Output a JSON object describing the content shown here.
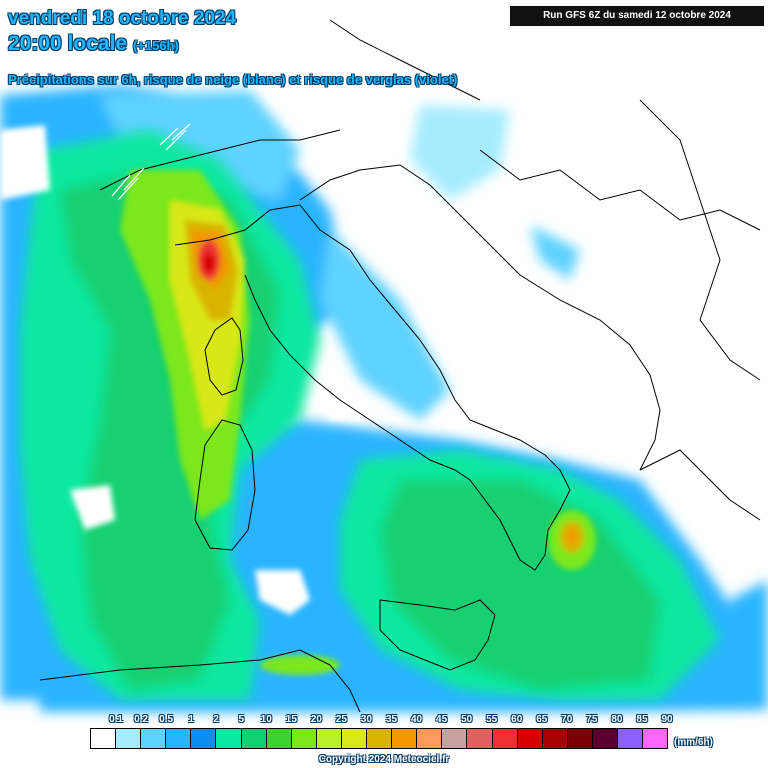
{
  "header": {
    "date_line": "vendredi 18 octobre 2024",
    "time_line": "20:00 locale",
    "lead_time": "(+156h)",
    "subtitle": "Précipitations sur 6h, risque de neige (blanc) et risque de verglas (violet)",
    "run_info": "Run GFS 6Z du samedi 12 octobre 2024"
  },
  "legend": {
    "labels": [
      "0.1",
      "0.2",
      "0.5",
      "1",
      "2",
      "5",
      "10",
      "15",
      "20",
      "25",
      "30",
      "35",
      "40",
      "45",
      "50",
      "55",
      "60",
      "65",
      "70",
      "75",
      "80",
      "85",
      "90"
    ],
    "unit": "(mm/6h)",
    "colors": [
      "#ffffff",
      "#a6ecff",
      "#5fd2ff",
      "#29b4ff",
      "#0a8cf0",
      "#08e8a0",
      "#12d072",
      "#3ed22e",
      "#7ae81c",
      "#b8f02a",
      "#d8e818",
      "#d8b400",
      "#f39800",
      "#ff9a60",
      "#c8a0a0",
      "#e06060",
      "#ee3030",
      "#d80000",
      "#a80000",
      "#780000",
      "#5a0030",
      "#8a60ff",
      "#ff66ff"
    ]
  },
  "map": {
    "colors": {
      "light_blue": "#a6ecff",
      "cyan": "#5fd2ff",
      "blue": "#29b4ff",
      "teal": "#08e8a0",
      "green_a": "#12d072",
      "green_b": "#3ed22e",
      "lime": "#7ae81c",
      "yellow": "#d8e818",
      "gold": "#d8b400",
      "orange": "#f39800",
      "red": "#ee3030",
      "dark_red": "#d80000"
    }
  },
  "footer": {
    "copyright": "Copyright 2024 Meteociel.fr"
  }
}
